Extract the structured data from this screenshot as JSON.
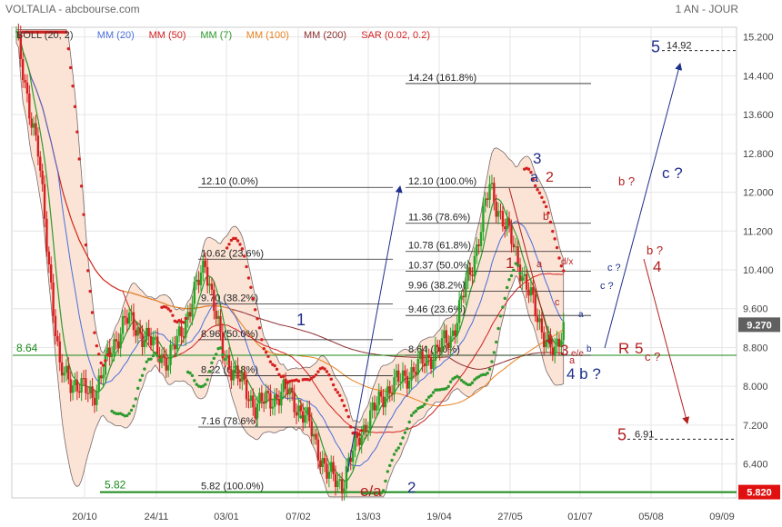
{
  "header": {
    "title": "VOLTALIA - abcbourse.com",
    "period": "1 AN - JOUR"
  },
  "colors": {
    "candle_up": "#27a327",
    "candle_down": "#d42020",
    "sar_up": "#2e9a2e",
    "sar_down": "#d42020",
    "boll_fill": "#fbe3d5",
    "boll_line": "#7a6a6a",
    "mm20": "#4a6fdc",
    "mm50": "#d42020",
    "mm7": "#2e9a2e",
    "mm100": "#e8821e",
    "mm200": "#8b2f2f",
    "annot_blue": "#1f2f8c",
    "annot_red": "#b42020",
    "green_line": "#1a8a1a",
    "price_badge": "#606060",
    "support_badge": "#e01010"
  },
  "indicators": [
    {
      "label": "BOLL (20, 2)",
      "color": "#333333"
    },
    {
      "label": "MM (20)",
      "color": "#4a6fdc"
    },
    {
      "label": "MM (50)",
      "color": "#d42020"
    },
    {
      "label": "MM (7)",
      "color": "#2e9a2e"
    },
    {
      "label": "MM (100)",
      "color": "#e8821e"
    },
    {
      "label": "MM (200)",
      "color": "#8b2f2f"
    },
    {
      "label": "SAR (0.02, 0.2)",
      "color": "#d42020"
    }
  ],
  "chart_data": {
    "type": "candlestick",
    "ylim": [
      5.7,
      15.4
    ],
    "yticks": [
      "15.200",
      "14.400",
      "13.600",
      "12.800",
      "12.000",
      "11.200",
      "10.400",
      "9.600",
      "8.800",
      "8.000",
      "7.200",
      "6.400"
    ],
    "ytick_values": [
      15.2,
      14.4,
      13.6,
      12.8,
      12.0,
      11.2,
      10.4,
      9.6,
      8.8,
      8.0,
      7.2,
      6.4
    ],
    "x_labels": [
      "20/10",
      "24/11",
      "03/01",
      "07/02",
      "13/03",
      "19/04",
      "27/05",
      "01/07",
      "05/08",
      "09/09"
    ],
    "price_points": [
      {
        "d": 0,
        "p": 15.2
      },
      {
        "d": 10,
        "p": 12.8
      },
      {
        "d": 20,
        "p": 8.3
      },
      {
        "d": 35,
        "p": 7.8
      },
      {
        "d": 50,
        "p": 9.4
      },
      {
        "d": 60,
        "p": 9.0
      },
      {
        "d": 70,
        "p": 8.5
      },
      {
        "d": 80,
        "p": 9.6
      },
      {
        "d": 87,
        "p": 10.6
      },
      {
        "d": 95,
        "p": 8.7
      },
      {
        "d": 110,
        "p": 7.6
      },
      {
        "d": 125,
        "p": 7.9
      },
      {
        "d": 135,
        "p": 7.2
      },
      {
        "d": 143,
        "p": 6.2
      },
      {
        "d": 150,
        "p": 6.0
      },
      {
        "d": 158,
        "p": 7.0
      },
      {
        "d": 170,
        "p": 7.9
      },
      {
        "d": 185,
        "p": 8.4
      },
      {
        "d": 200,
        "p": 9.0
      },
      {
        "d": 210,
        "p": 10.5
      },
      {
        "d": 218,
        "p": 12.1
      },
      {
        "d": 228,
        "p": 11.0
      },
      {
        "d": 240,
        "p": 9.4
      },
      {
        "d": 248,
        "p": 8.6
      },
      {
        "d": 252,
        "p": 9.27
      }
    ],
    "last_day": 252,
    "total_days": 330,
    "current_price": "9.270",
    "support_price": "5.820",
    "level_864": {
      "value": 8.64,
      "label": "8.64"
    },
    "level_582": {
      "value": 5.82,
      "label": "5.82"
    },
    "fib_left": [
      {
        "value": 12.1,
        "label": "12.10  (0.0%)"
      },
      {
        "value": 10.62,
        "label": "10.62  (23.6%)"
      },
      {
        "value": 9.7,
        "label": "9.70  (38.2%)"
      },
      {
        "value": 8.96,
        "label": "8.96  (50.0%)"
      },
      {
        "value": 8.22,
        "label": "8.22  (61.8%)"
      },
      {
        "value": 7.16,
        "label": "7.16  (78.6%)"
      },
      {
        "value": 5.82,
        "label": "5.82  (100.0%)"
      }
    ],
    "fib_right": [
      {
        "value": 14.24,
        "label": "14.24  (161.8%)"
      },
      {
        "value": 12.1,
        "label": "12.10  (100.0%)"
      },
      {
        "value": 11.36,
        "label": "11.36  (78.6%)"
      },
      {
        "value": 10.78,
        "label": "10.78  (61.8%)"
      },
      {
        "value": 10.37,
        "label": "10.37  (50.0%)"
      },
      {
        "value": 9.96,
        "label": "9.96  (38.2%)"
      },
      {
        "value": 9.46,
        "label": "9.46  (23.6%)"
      },
      {
        "value": 8.64,
        "label": "8.64  (0.0%)"
      }
    ],
    "targets": [
      {
        "label": "5",
        "value_label": "14.92",
        "value": 14.92,
        "color": "#1f2f8c"
      },
      {
        "label": "5",
        "value_label": "6.91",
        "value": 6.91,
        "color": "#b42020"
      }
    ],
    "annotations": [
      {
        "text": "1",
        "color": "#1f2f8c"
      },
      {
        "text": "e/a",
        "color": "#b42020"
      },
      {
        "text": "2",
        "color": "#1f2f8c"
      },
      {
        "text": "1",
        "color": "#b42020"
      },
      {
        "text": "3",
        "color": "#1f2f8c"
      },
      {
        "text": "a",
        "color": "#1f2f8c"
      },
      {
        "text": "2",
        "color": "#b42020"
      },
      {
        "text": "b",
        "color": "#b42020"
      },
      {
        "text": "a",
        "color": "#b42020"
      },
      {
        "text": "d/x",
        "color": "#b42020"
      },
      {
        "text": "c",
        "color": "#b42020"
      },
      {
        "text": "a",
        "color": "#1f2f8c"
      },
      {
        "text": "e/e",
        "color": "#b42020"
      },
      {
        "text": "b",
        "color": "#1f2f8c"
      },
      {
        "text": "3",
        "color": "#b42020"
      },
      {
        "text": "a",
        "color": "#b42020"
      },
      {
        "text": "4 b ?",
        "color": "#1f2f8c"
      },
      {
        "text": "R",
        "color": "#b42020"
      },
      {
        "text": "5",
        "color": "#b42020"
      },
      {
        "text": "c ?",
        "color": "#b42020"
      },
      {
        "text": "b ?",
        "color": "#b42020"
      },
      {
        "text": "c ?",
        "color": "#1f2f8c"
      },
      {
        "text": "b ?",
        "color": "#b42020"
      },
      {
        "text": "4",
        "color": "#b42020"
      },
      {
        "text": "c ?",
        "color": "#1f2f8c"
      },
      {
        "text": "c ?",
        "color": "#1f2f8c"
      }
    ]
  }
}
